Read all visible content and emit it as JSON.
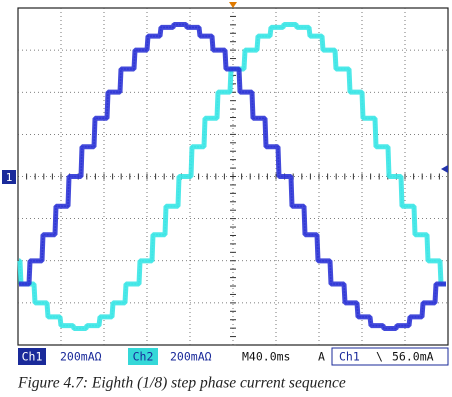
{
  "scope": {
    "channel_marker": "1",
    "status": {
      "ch1": "Ch1",
      "ch1_scale": "200mAΩ",
      "ch2": "Ch2",
      "ch2_scale": "200mAΩ",
      "timebase": "M40.0ms",
      "trigger_mode": "A",
      "trigger_source": "Ch1",
      "trigger_slope": "\\",
      "trigger_level": "56.0mA"
    }
  },
  "caption": "Figure 4.7: Eighth (1/8) step phase current sequence"
}
